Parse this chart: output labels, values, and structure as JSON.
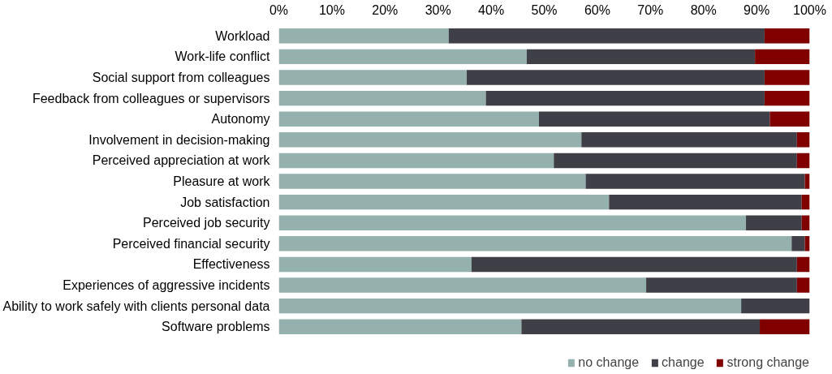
{
  "chart_data": {
    "type": "bar",
    "orientation": "horizontal",
    "stacked": true,
    "categories": [
      "Workload",
      "Work-life conflict",
      "Social support from colleagues",
      "Feedback from colleagues or supervisors",
      "Autonomy",
      "Involvement in decision-making",
      "Perceived appreciation at work",
      "Pleasure at work",
      "Job satisfaction",
      "Perceived job security",
      "Perceived financial security",
      "Effectiveness",
      "Experiences of aggressive incidents",
      "Ability to work safely with clients personal data",
      "Software problems"
    ],
    "series": [
      {
        "name": "no change",
        "color": "#95b1ae",
        "values": [
          32,
          46.7,
          35.4,
          39,
          49,
          57,
          51.8,
          57.8,
          62.2,
          88,
          96.6,
          36.3,
          69.2,
          87.1,
          45.7
        ]
      },
      {
        "name": "change",
        "color": "#3f3f48",
        "values": [
          59.5,
          43,
          56.1,
          52.5,
          43.5,
          40.6,
          45.8,
          41.3,
          36.3,
          10.5,
          2.5,
          61.3,
          28.4,
          12.9,
          44.9
        ]
      },
      {
        "name": "strong change",
        "color": "#800000",
        "values": [
          8.5,
          10.3,
          8.5,
          8.5,
          7.5,
          2.4,
          2.4,
          0.9,
          1.5,
          1.5,
          0.9,
          2.4,
          2.4,
          0,
          9.4
        ]
      }
    ],
    "xlim": [
      0,
      100
    ],
    "xticks": [
      {
        "value": 0,
        "label": "0%"
      },
      {
        "value": 10,
        "label": "10%"
      },
      {
        "value": 20,
        "label": "20%"
      },
      {
        "value": 30,
        "label": "30%"
      },
      {
        "value": 40,
        "label": "40%"
      },
      {
        "value": 50,
        "label": "50%"
      },
      {
        "value": 60,
        "label": "60%"
      },
      {
        "value": 70,
        "label": "70%"
      },
      {
        "value": 80,
        "label": "80%"
      },
      {
        "value": 90,
        "label": "90%"
      },
      {
        "value": 100,
        "label": "100%"
      }
    ],
    "grid": false,
    "legend": "bottom right"
  }
}
